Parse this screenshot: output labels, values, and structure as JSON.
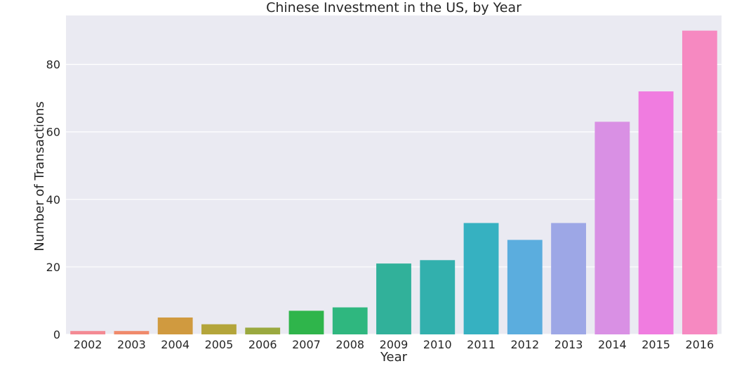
{
  "chart_data": {
    "type": "bar",
    "title": "Chinese Investment in the US, by Year",
    "xlabel": "Year",
    "ylabel": "Number of Transactions",
    "categories": [
      "2002",
      "2003",
      "2004",
      "2005",
      "2006",
      "2007",
      "2008",
      "2009",
      "2010",
      "2011",
      "2012",
      "2013",
      "2014",
      "2015",
      "2016"
    ],
    "values": [
      1,
      1,
      5,
      3,
      2,
      7,
      8,
      21,
      22,
      33,
      28,
      33,
      63,
      72,
      90
    ],
    "colors": [
      "#f48a93",
      "#f08a6b",
      "#d09a3f",
      "#b4a53b",
      "#9aa93f",
      "#2fb54b",
      "#2fb77f",
      "#31b19a",
      "#32b0ad",
      "#36b1c1",
      "#5badde",
      "#9da7e6",
      "#d990e4",
      "#f07ce0",
      "#f689c1"
    ],
    "yticks": [
      0,
      20,
      40,
      60,
      80
    ],
    "ylim": [
      0,
      94.5
    ],
    "grid": true,
    "background": "#eaeaf2",
    "gridColor": "#ffffff"
  }
}
